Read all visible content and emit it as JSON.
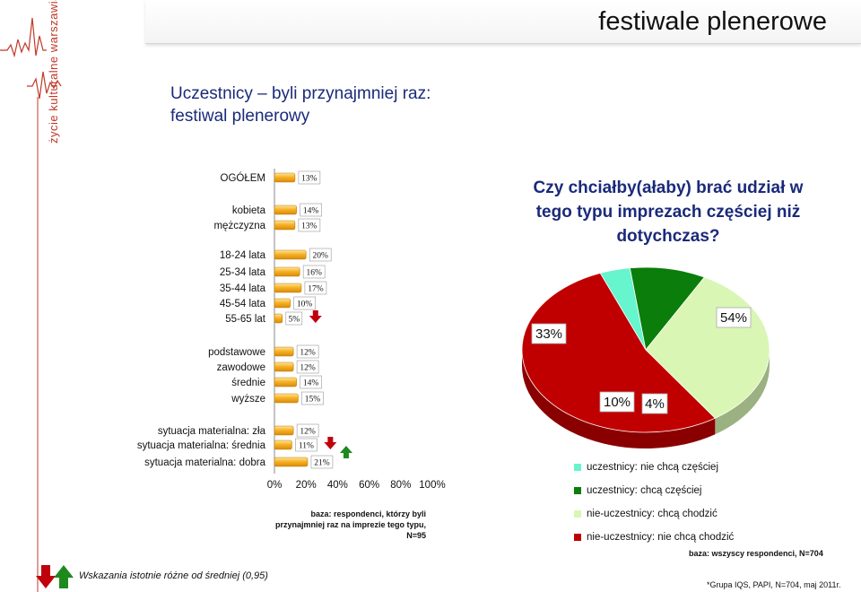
{
  "header": {
    "title": "festiwale plenerowe"
  },
  "logo": {
    "text": "życie kulturalne warszawiaków"
  },
  "subtitle": {
    "line1": "Uczestnicy – byli przynajmniej raz:",
    "line2": "festiwal plenerowy"
  },
  "colors": {
    "bar_fill": "#f7b226",
    "accent_text": "#1a2a7a",
    "arrow_down": "#c0000b",
    "arrow_up": "#1e8a1e",
    "logo": "#c0392b"
  },
  "chart_data": [
    {
      "type": "bar",
      "orientation": "horizontal",
      "xlim": [
        0,
        100
      ],
      "xticks": [
        "0%",
        "20%",
        "40%",
        "60%",
        "80%",
        "100%"
      ],
      "categories": [
        "OGÓŁEM",
        "kobieta",
        "mężczyzna",
        "18-24 lata",
        "25-34 lata",
        "35-44 lata",
        "45-54 lata",
        "55-65 lat",
        "podstawowe",
        "zawodowe",
        "średnie",
        "wyższe",
        "sytuacja materialna: zła",
        "sytuacja materialna: średnia",
        "sytuacja materialna: dobra"
      ],
      "values": [
        13,
        14,
        13,
        20,
        16,
        17,
        10,
        5,
        12,
        12,
        14,
        15,
        12,
        11,
        21
      ],
      "value_labels": [
        "13%",
        "14%",
        "13%",
        "20%",
        "16%",
        "17%",
        "10%",
        "5%",
        "12%",
        "12%",
        "14%",
        "15%",
        "12%",
        "11%",
        "21%"
      ],
      "groups": [
        [
          0
        ],
        [
          1,
          2
        ],
        [
          3,
          4,
          5,
          6,
          7
        ],
        [
          8,
          9,
          10,
          11
        ],
        [
          12,
          13,
          14
        ]
      ],
      "significance": {
        "down": [
          7,
          13
        ],
        "up": [
          14
        ]
      },
      "base_note": "baza: respondenci, którzy byli przynajmniej raz na imprezie tego typu, N=95"
    },
    {
      "type": "pie",
      "title": "Czy chciałby(ałaby) brać udział w tego typu imprezach częściej niż dotychczas?",
      "series": [
        {
          "name": "uczestnicy: nie chcą częściej",
          "value": 4,
          "label": "4%",
          "color": "#66f5cc"
        },
        {
          "name": "uczestnicy: chcą częściej",
          "value": 10,
          "label": "10%",
          "color": "#0a7d0a"
        },
        {
          "name": "nie-uczestnicy: chcą chodzić",
          "value": 33,
          "label": "33%",
          "color": "#d9f6b4"
        },
        {
          "name": "nie-uczestnicy: nie chcą chodzić",
          "value": 54,
          "label": "54%",
          "color": "#c00000"
        }
      ],
      "base_note": "baza: wszyscy respondenci, N=704"
    }
  ],
  "significance_note": "Wskazania istotnie różne od średniej (0,95)",
  "footnote": "*Grupa IQS, PAPI, N=704, maj 2011r."
}
